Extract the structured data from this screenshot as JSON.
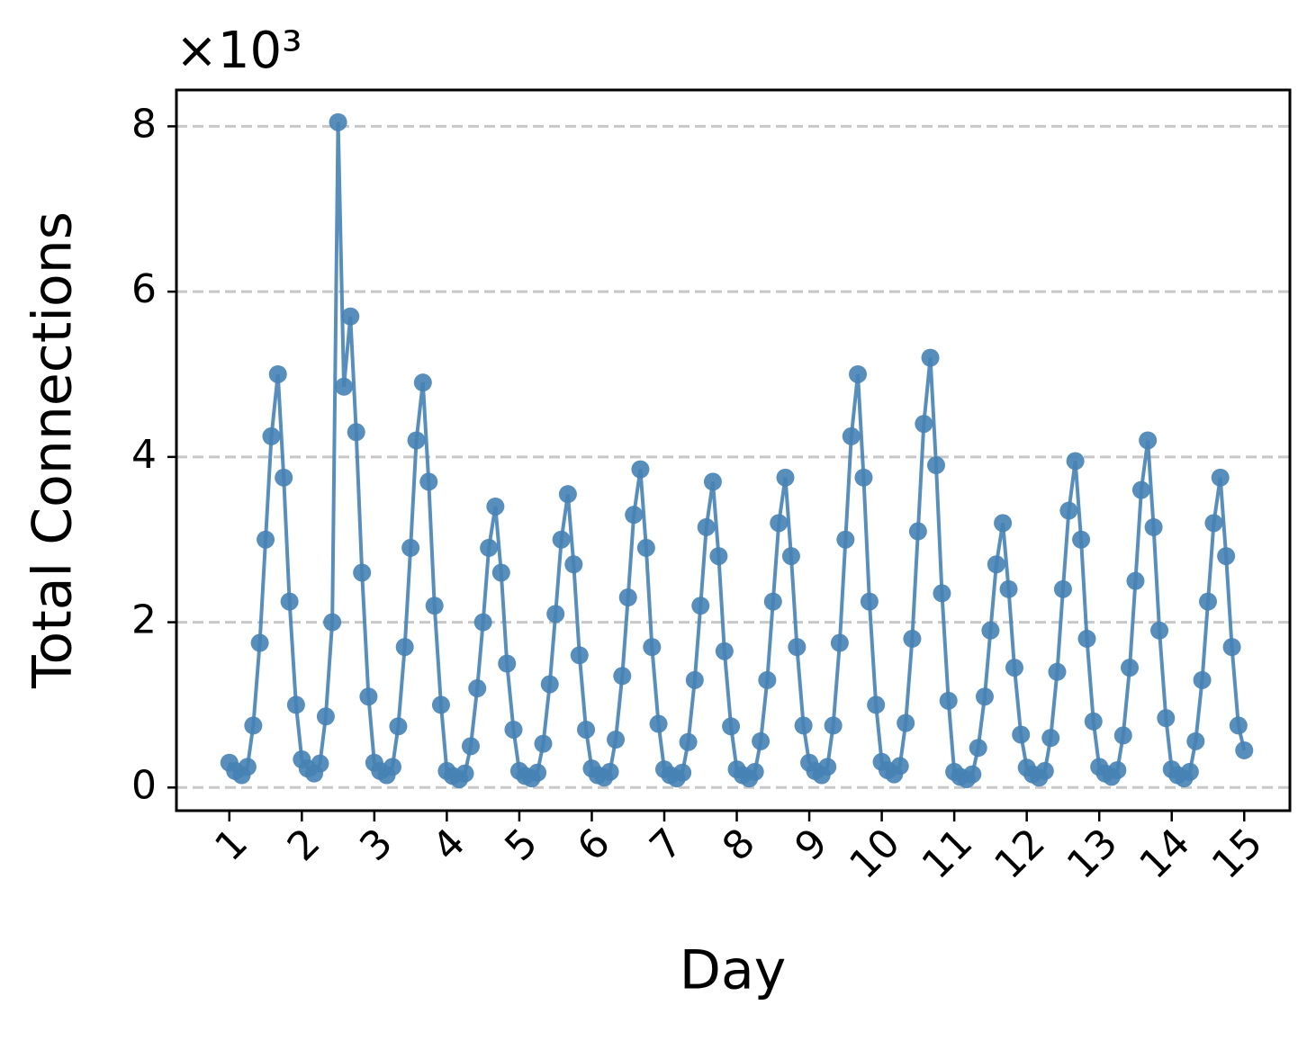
{
  "chart_data": {
    "type": "line",
    "x_label": "Day",
    "y_label": "Total Connections",
    "y_offset_label": "×10³",
    "x": [
      1,
      1.08,
      1.17,
      1.25,
      1.33,
      1.42,
      1.5,
      1.58,
      1.67,
      1.75,
      1.83,
      1.92,
      2,
      2.08,
      2.17,
      2.25,
      2.33,
      2.42,
      2.5,
      2.58,
      2.67,
      2.75,
      2.83,
      2.92,
      3,
      3.08,
      3.17,
      3.25,
      3.33,
      3.42,
      3.5,
      3.58,
      3.67,
      3.75,
      3.83,
      3.92,
      4,
      4.08,
      4.17,
      4.25,
      4.33,
      4.42,
      4.5,
      4.58,
      4.67,
      4.75,
      4.83,
      4.92,
      5,
      5.08,
      5.17,
      5.25,
      5.33,
      5.42,
      5.5,
      5.58,
      5.67,
      5.75,
      5.83,
      5.92,
      6,
      6.08,
      6.17,
      6.25,
      6.33,
      6.42,
      6.5,
      6.58,
      6.67,
      6.75,
      6.83,
      6.92,
      7,
      7.08,
      7.17,
      7.25,
      7.33,
      7.42,
      7.5,
      7.58,
      7.67,
      7.75,
      7.83,
      7.92,
      8,
      8.08,
      8.17,
      8.25,
      8.33,
      8.42,
      8.5,
      8.58,
      8.67,
      8.75,
      8.83,
      8.92,
      9,
      9.08,
      9.17,
      9.25,
      9.33,
      9.42,
      9.5,
      9.58,
      9.67,
      9.75,
      9.83,
      9.92,
      10,
      10.08,
      10.17,
      10.25,
      10.33,
      10.42,
      10.5,
      10.58,
      10.67,
      10.75,
      10.83,
      10.92,
      11,
      11.08,
      11.17,
      11.25,
      11.33,
      11.42,
      11.5,
      11.58,
      11.67,
      11.75,
      11.83,
      11.92,
      12,
      12.08,
      12.17,
      12.25,
      12.33,
      12.42,
      12.5,
      12.58,
      12.67,
      12.75,
      12.83,
      12.92,
      13,
      13.08,
      13.17,
      13.25,
      13.33,
      13.42,
      13.5,
      13.58,
      13.67,
      13.75,
      13.83,
      13.92,
      14,
      14.08,
      14.17,
      14.25,
      14.33,
      14.42,
      14.5,
      14.58,
      14.67,
      14.75,
      14.83,
      14.92,
      15
    ],
    "series": [
      {
        "color": "#4682b4",
        "values": [
          0.3,
          0.2,
          0.15,
          0.25,
          0.75,
          1.75,
          3.0,
          4.25,
          5.0,
          3.75,
          2.25,
          1.0,
          0.34,
          0.23,
          0.17,
          0.29,
          0.86,
          2.0,
          8.05,
          4.85,
          5.7,
          4.3,
          2.6,
          1.1,
          0.3,
          0.2,
          0.15,
          0.25,
          0.74,
          1.7,
          2.9,
          4.2,
          4.9,
          3.7,
          2.2,
          1.0,
          0.2,
          0.14,
          0.1,
          0.17,
          0.5,
          1.2,
          2.0,
          2.9,
          3.4,
          2.6,
          1.5,
          0.7,
          0.2,
          0.14,
          0.11,
          0.18,
          0.53,
          1.25,
          2.1,
          3.0,
          3.55,
          2.7,
          1.6,
          0.7,
          0.23,
          0.15,
          0.12,
          0.19,
          0.58,
          1.35,
          2.3,
          3.3,
          3.85,
          2.9,
          1.7,
          0.77,
          0.22,
          0.15,
          0.11,
          0.18,
          0.55,
          1.3,
          2.2,
          3.15,
          3.7,
          2.8,
          1.65,
          0.74,
          0.22,
          0.15,
          0.11,
          0.19,
          0.56,
          1.3,
          2.25,
          3.2,
          3.75,
          2.8,
          1.7,
          0.75,
          0.3,
          0.2,
          0.15,
          0.25,
          0.75,
          1.75,
          3.0,
          4.25,
          5.0,
          3.75,
          2.25,
          1.0,
          0.31,
          0.21,
          0.16,
          0.26,
          0.78,
          1.8,
          3.1,
          4.4,
          5.2,
          3.9,
          2.35,
          1.05,
          0.19,
          0.13,
          0.1,
          0.16,
          0.48,
          1.1,
          1.9,
          2.7,
          3.2,
          2.4,
          1.45,
          0.64,
          0.24,
          0.16,
          0.12,
          0.2,
          0.6,
          1.4,
          2.4,
          3.35,
          3.95,
          3.0,
          1.8,
          0.8,
          0.25,
          0.17,
          0.13,
          0.21,
          0.63,
          1.45,
          2.5,
          3.6,
          4.2,
          3.15,
          1.9,
          0.84,
          0.22,
          0.15,
          0.11,
          0.19,
          0.56,
          1.3,
          2.25,
          3.2,
          3.75,
          2.8,
          1.7,
          0.75,
          0.45
        ]
      }
    ],
    "xlim": [
      0.27,
      15.63
    ],
    "ylim": [
      -0.28,
      8.44
    ],
    "xticks": [
      1,
      2,
      3,
      4,
      5,
      6,
      7,
      8,
      9,
      10,
      11,
      12,
      13,
      14,
      15
    ],
    "yticks": [
      0,
      2,
      4,
      6,
      8
    ],
    "grid": true
  }
}
